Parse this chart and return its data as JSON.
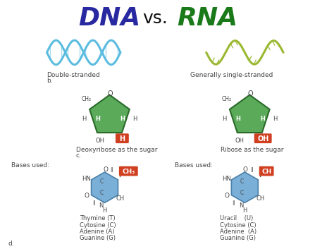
{
  "title_dna": "DNA",
  "title_vs": "vs.",
  "title_rna": "RNA",
  "title_dna_color": "#2828a0",
  "title_vs_color": "#111111",
  "title_rna_color": "#1a7a1a",
  "bg_color": "#ffffff",
  "dna_strand_color": "#5bbce0",
  "rna_strand_color": "#9ab830",
  "sugar_fill_color": "#5aaa5a",
  "sugar_edge_color": "#2a6a2a",
  "highlight_h_color": "#d04020",
  "highlight_oh_color": "#d04020",
  "base_fill_color": "#7ab0d8",
  "base_edge_color": "#4a80a8",
  "ch3_color": "#d04020",
  "ch_color": "#d04020",
  "label_color": "#444444",
  "label_dna_strand": "Double-stranded",
  "label_b": "b.",
  "label_rna_strand": "Generally single-stranded",
  "label_dna_sugar": "Deoxyribose as the sugar",
  "label_rna_sugar": "Ribose as the sugar",
  "label_c": "c.",
  "label_dna_bases": "Bases used:",
  "label_rna_bases": "Bases used:",
  "label_d": "d.",
  "dna_base_list": [
    "Thymine (T)",
    "Cytosine (C)",
    "Adenine (A)",
    "Guanine (G)"
  ],
  "rna_base_list": [
    "Uracil    (U)",
    "Cytosine (C)",
    "Adenine  (A)",
    "Guanine (G)"
  ]
}
